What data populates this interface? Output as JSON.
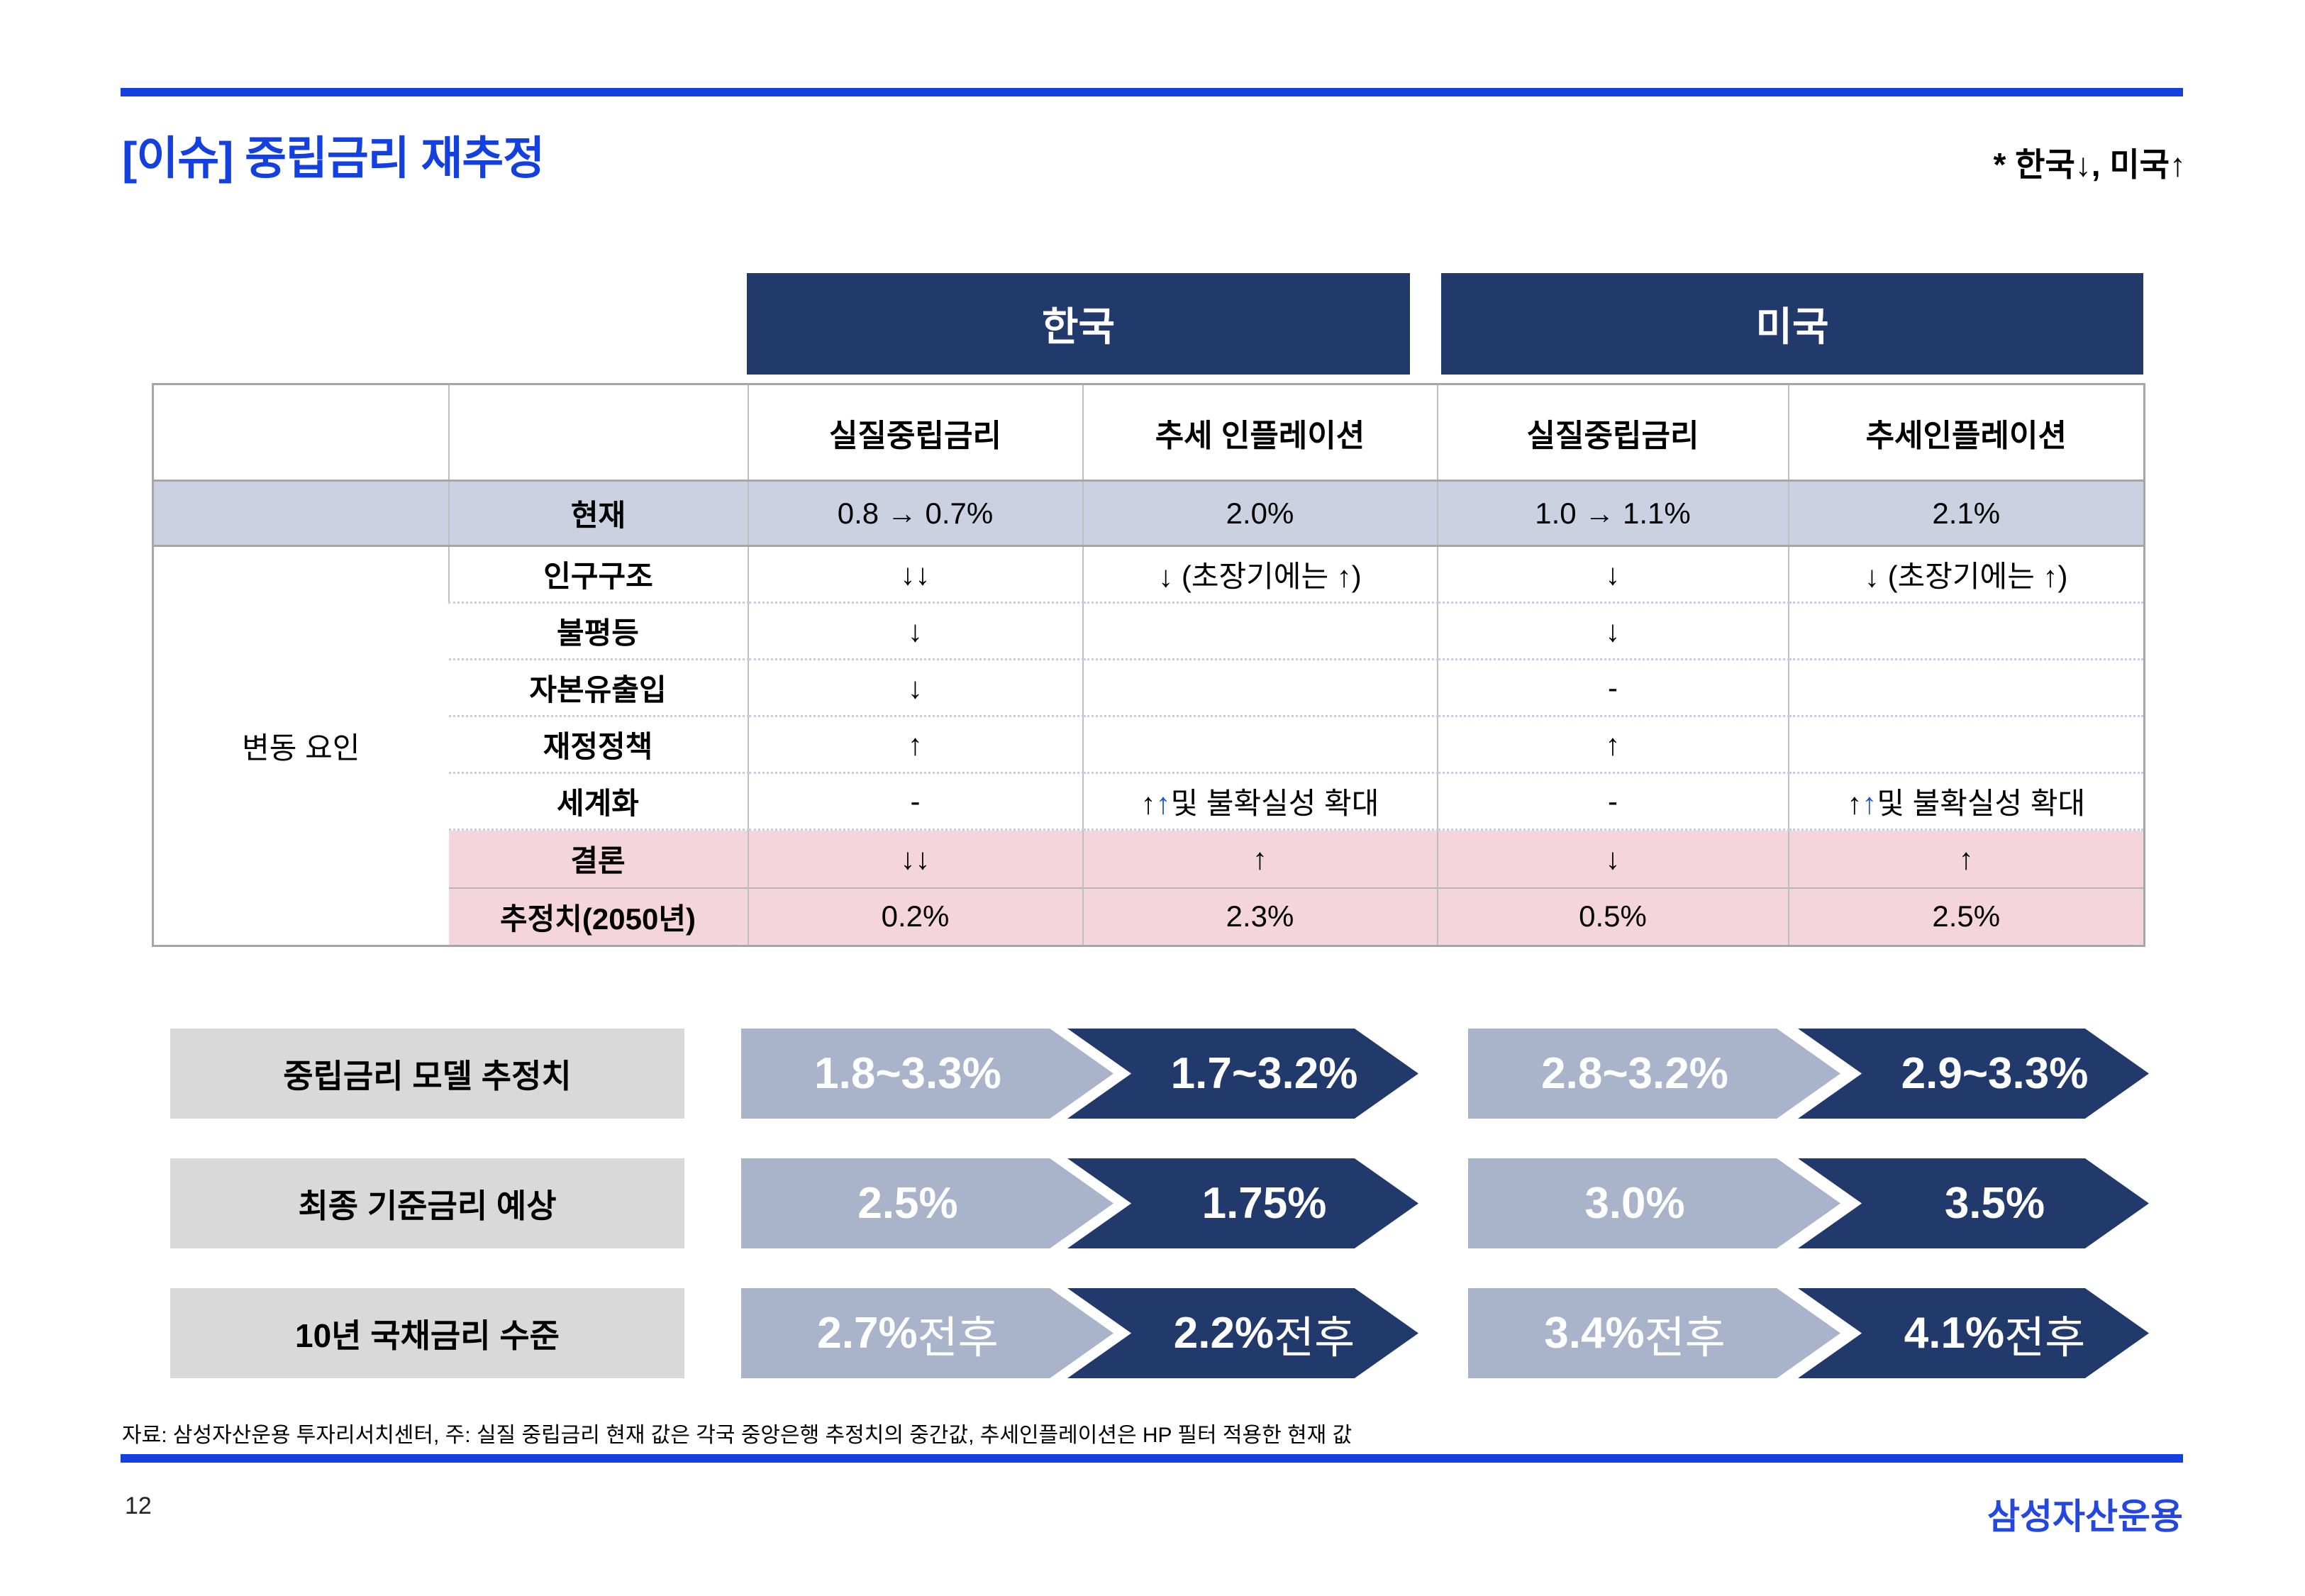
{
  "page": {
    "title": "[이슈] 중립금리 재추정",
    "annotation": "* 한국↓, 미국↑",
    "source_note": "자료: 삼성자산운용 투자리서치센터, 주: 실질 중립금리 현재 값은 각국 중앙은행 추정치의 중간값, 추세인플레이션은 HP 필터 적용한 현재 값",
    "page_number": "12",
    "logo": "삼성자산운용"
  },
  "colors": {
    "accent_blue": "#1540e0",
    "logo_blue": "#2447e1",
    "navy": "#223a6b",
    "light_chevron": "#a9b4ca",
    "lavender_row": "#ccd1e2",
    "pink_row": "#f5d5dd",
    "label_gray": "#d9d9d9",
    "arrow_blue": "#2255cc"
  },
  "table": {
    "country_headers": [
      "한국",
      "미국"
    ],
    "column_headers": [
      "실질중립금리",
      "추세 인플레이션",
      "실질중립금리",
      "추세인플레이션"
    ],
    "group_label": "변동 요인",
    "rows": [
      {
        "label": "현재",
        "style": "current",
        "cells": [
          "0.8 → 0.7%",
          "2.0%",
          "1.0 → 1.1%",
          "2.1%"
        ]
      },
      {
        "label": "인구구조",
        "style": "factor",
        "cells": [
          "↓↓",
          "↓ (초장기에는 ↑)",
          "↓",
          "↓ (초장기에는 ↑)"
        ]
      },
      {
        "label": "불평등",
        "style": "factor",
        "cells": [
          "↓",
          "",
          "↓",
          ""
        ]
      },
      {
        "label": "자본유출입",
        "style": "factor",
        "cells": [
          "↓",
          "",
          "-",
          ""
        ]
      },
      {
        "label": "재정정책",
        "style": "factor",
        "cells": [
          "↑",
          "",
          "↑",
          ""
        ]
      },
      {
        "label": "세계화",
        "style": "factor",
        "cells": [
          "-",
          [
            {
              "t": "↑"
            },
            {
              "t": "↑",
              "c": "blue"
            },
            {
              "t": "및 불확실성 확대"
            }
          ],
          "-",
          [
            {
              "t": "↑"
            },
            {
              "t": "↑",
              "c": "blue"
            },
            {
              "t": "및 불확실성 확대"
            }
          ]
        ]
      },
      {
        "label": "결론",
        "style": "conclusion",
        "cells": [
          "↓↓",
          "↑",
          "↓",
          "↑"
        ]
      },
      {
        "label": "추정치(2050년)",
        "style": "estimate",
        "cells": [
          "0.2%",
          "2.3%",
          "0.5%",
          "2.5%"
        ]
      }
    ]
  },
  "summary_rows": [
    {
      "label": "중립금리 모델 추정치",
      "korea_from": "1.8~3.3%",
      "korea_to": "1.7~3.2%",
      "us_from": "2.8~3.2%",
      "us_to": "2.9~3.3%"
    },
    {
      "label": "최종 기준금리 예상",
      "korea_from": "2.5%",
      "korea_to": "1.75%",
      "us_from": "3.0%",
      "us_to": "3.5%"
    },
    {
      "label": "10년 국채금리 수준",
      "korea_from": [
        {
          "t": "2.7%"
        },
        {
          "t": " 전후",
          "light": true
        }
      ],
      "korea_to": [
        {
          "t": "2.2%"
        },
        {
          "t": " 전후",
          "light": true
        }
      ],
      "us_from": [
        {
          "t": "3.4%"
        },
        {
          "t": " 전후",
          "light": true
        }
      ],
      "us_to": [
        {
          "t": "4.1%"
        },
        {
          "t": " 전후",
          "light": true
        }
      ]
    }
  ]
}
